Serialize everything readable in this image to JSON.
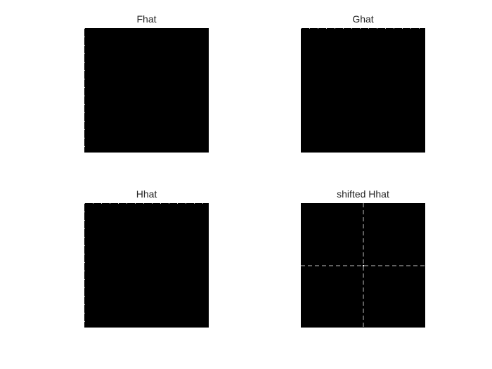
{
  "panels": [
    {
      "id": "fhat",
      "title": "Fhat"
    },
    {
      "id": "ghat",
      "title": "Ghat"
    },
    {
      "id": "hhat",
      "title": "Hhat"
    },
    {
      "id": "shifted",
      "title": "shifted Hhat"
    }
  ],
  "colors": {
    "background": "#ffffff",
    "image_fill": "#000000",
    "dash_line": "#bfbfbf",
    "title_text": "#222222"
  }
}
